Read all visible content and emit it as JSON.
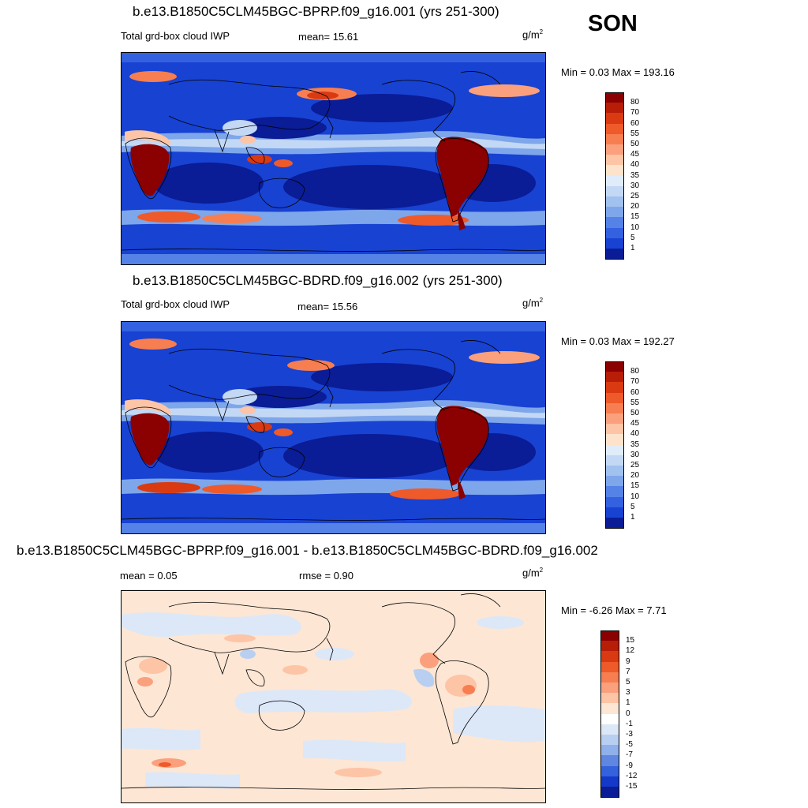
{
  "season": "SON",
  "panels": [
    {
      "title": "b.e13.B1850C5CLM45BGC-BPRP.f09_g16.001 (yrs 251-300)",
      "left_label": "Total grd-box cloud IWP",
      "mid_label": "mean=  15.61",
      "unit_base": "g/m",
      "unit_exp": "2",
      "minmax": "Min =   0.03 Max = 193.16",
      "colorbar": {
        "labels": [
          "80",
          "70",
          "60",
          "55",
          "50",
          "45",
          "40",
          "35",
          "30",
          "25",
          "20",
          "15",
          "10",
          "5",
          "1"
        ],
        "colors": [
          "#8b0000",
          "#b81d08",
          "#d93a12",
          "#ee5a2a",
          "#f77e50",
          "#fba07c",
          "#fdc4a6",
          "#fde3cc",
          "#e0ecfa",
          "#c3d8f5",
          "#a1c1ef",
          "#7ea6ea",
          "#5582e6",
          "#3361e0",
          "#1842d2",
          "#0a1c96"
        ]
      }
    },
    {
      "title": "b.e13.B1850C5CLM45BGC-BDRD.f09_g16.002 (yrs 251-300)",
      "left_label": "Total grd-box cloud IWP",
      "mid_label": "mean=  15.56",
      "unit_base": "g/m",
      "unit_exp": "2",
      "minmax": "Min =   0.03 Max = 192.27",
      "colorbar": {
        "labels": [
          "80",
          "70",
          "60",
          "55",
          "50",
          "45",
          "40",
          "35",
          "30",
          "25",
          "20",
          "15",
          "10",
          "5",
          "1"
        ],
        "colors": [
          "#8b0000",
          "#b81d08",
          "#d93a12",
          "#ee5a2a",
          "#f77e50",
          "#fba07c",
          "#fdc4a6",
          "#fde3cc",
          "#e0ecfa",
          "#c3d8f5",
          "#a1c1ef",
          "#7ea6ea",
          "#5582e6",
          "#3361e0",
          "#1842d2",
          "#0a1c96"
        ]
      }
    },
    {
      "title": "b.e13.B1850C5CLM45BGC-BPRP.f09_g16.001 - b.e13.B1850C5CLM45BGC-BDRD.f09_g16.002",
      "left_label": "mean =   0.05",
      "mid_label": "rmse =   0.90",
      "unit_base": "g/m",
      "unit_exp": "2",
      "minmax": "Min =  -6.26 Max =   7.71",
      "colorbar": {
        "labels": [
          "15",
          "12",
          "9",
          "7",
          "5",
          "3",
          "1",
          "0",
          "-1",
          "-3",
          "-5",
          "-7",
          "-9",
          "-12",
          "-15"
        ],
        "colors": [
          "#8b0000",
          "#b81d08",
          "#d93a12",
          "#ee5a2a",
          "#f77e50",
          "#fba07c",
          "#fdc4a6",
          "#fde6d4",
          "#ffffff",
          "#dce8f8",
          "#b8cff2",
          "#8fb0ea",
          "#5f87e2",
          "#3461dc",
          "#1438c8",
          "#0a1c96"
        ]
      }
    }
  ]
}
